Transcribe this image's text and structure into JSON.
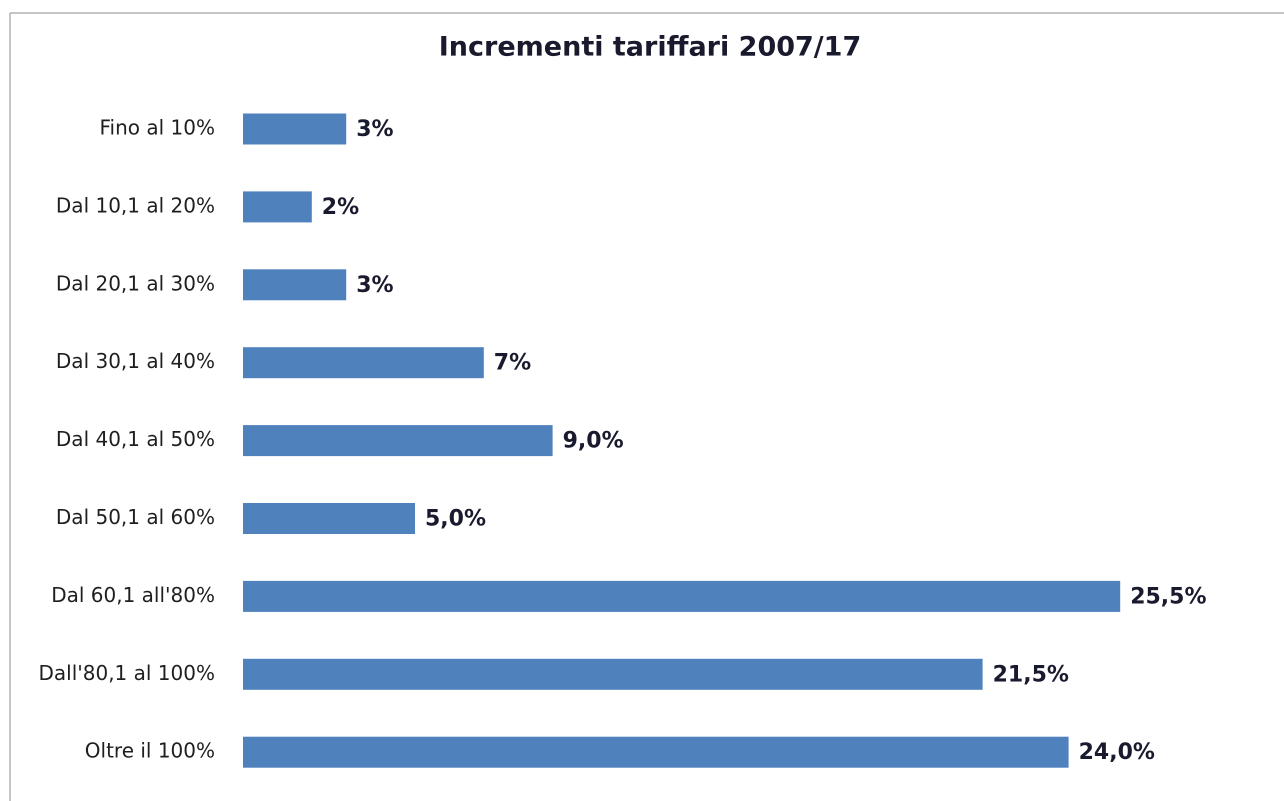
{
  "chart_data": {
    "type": "bar",
    "orientation": "horizontal",
    "title": "Incrementi tariffari 2007/17",
    "categories": [
      "Fino al 10%",
      "Dal 10,1 al 20%",
      "Dal 20,1 al 30%",
      "Dal 30,1 al 40%",
      "Dal 40,1 al 50%",
      "Dal 50,1 al 60%",
      "Dal 60,1 all'80%",
      "Dall'80,1 al 100%",
      "Oltre il 100%"
    ],
    "values": [
      3,
      2,
      3,
      7,
      9.0,
      5.0,
      25.5,
      21.5,
      24.0
    ],
    "value_labels": [
      "3%",
      "2%",
      "3%",
      "7%",
      "9,0%",
      "5,0%",
      "25,5%",
      "21,5%",
      "24,0%"
    ],
    "color": "#4f81bd"
  }
}
